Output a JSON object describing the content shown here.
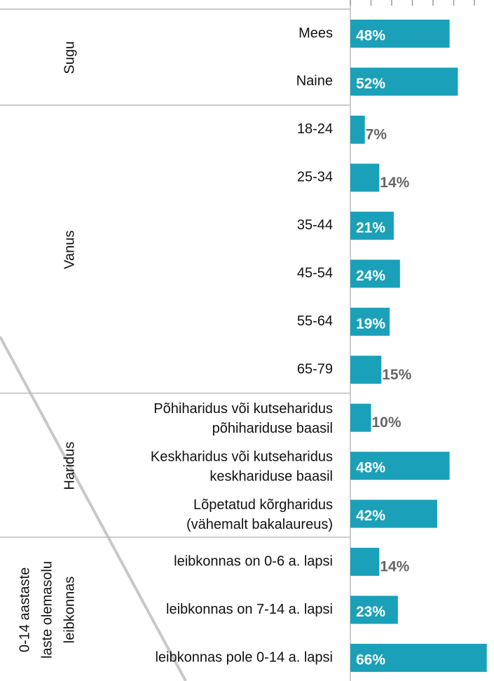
{
  "chart_data": {
    "type": "bar",
    "orientation": "horizontal",
    "color": "#1aa0b8",
    "xlim": [
      0,
      68
    ],
    "xticks": [
      0,
      10,
      20,
      30,
      40,
      50,
      60
    ],
    "groups": [
      {
        "name": [
          "Sugu"
        ],
        "categories": [
          [
            "Mees"
          ],
          [
            "Naine"
          ]
        ],
        "values": [
          48,
          52
        ],
        "value_labels": [
          "48%",
          "52%"
        ]
      },
      {
        "name": [
          "Vanus"
        ],
        "categories": [
          [
            "18-24"
          ],
          [
            "25-34"
          ],
          [
            "35-44"
          ],
          [
            "45-54"
          ],
          [
            "55-64"
          ],
          [
            "65-79"
          ]
        ],
        "values": [
          7,
          14,
          21,
          24,
          19,
          15
        ],
        "value_labels": [
          "7%",
          "14%",
          "21%",
          "24%",
          "19%",
          "15%"
        ]
      },
      {
        "name": [
          "Haridus"
        ],
        "categories": [
          [
            "Põhiharidus või kutseharidus",
            "põhihariduse baasil"
          ],
          [
            "Keskharidus või kutseharidus",
            "keskhariduse baasil"
          ],
          [
            "Lõpetatud kõrgharidus",
            "(vähemalt bakalaureus)"
          ]
        ],
        "values": [
          10,
          48,
          42
        ],
        "value_labels": [
          "10%",
          "48%",
          "42%"
        ]
      },
      {
        "name": [
          "0-14 aastaste",
          "laste olemasolu",
          "leibkonnas"
        ],
        "categories": [
          [
            "leibkonnas on 0-6 a. lapsi"
          ],
          [
            "leibkonnas on 7-14 a. lapsi"
          ],
          [
            "leibkonnas pole 0-14 a. lapsi"
          ]
        ],
        "values": [
          14,
          23,
          66
        ],
        "value_labels": [
          "14%",
          "23%",
          "66%"
        ]
      }
    ]
  }
}
